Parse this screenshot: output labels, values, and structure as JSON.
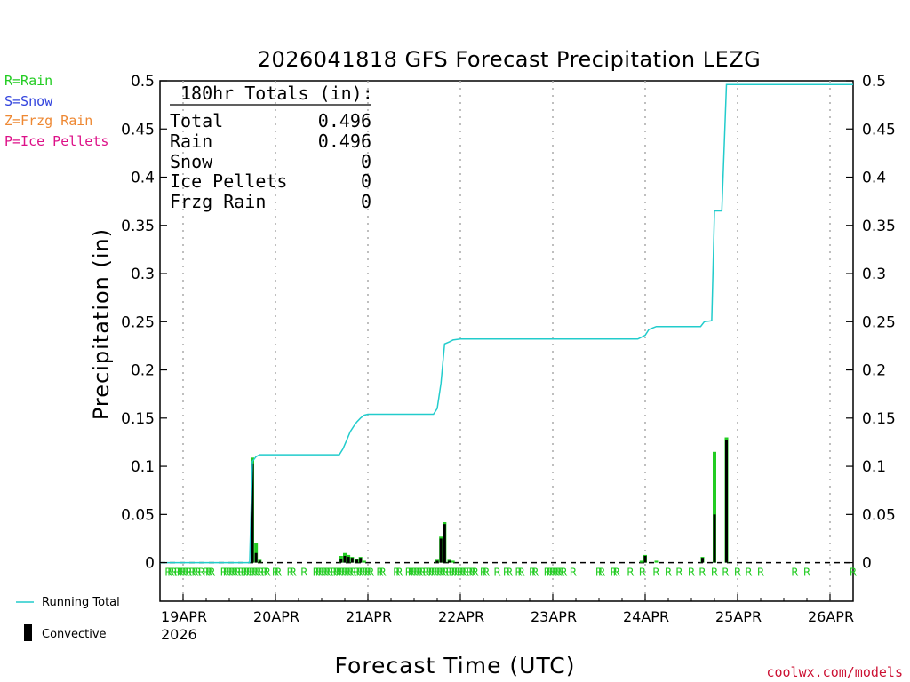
{
  "colors": {
    "rain": "#22cc22",
    "snow": "#3344dd",
    "frzg": "#ee8833",
    "ice": "#dd1188",
    "running": "#22cccc",
    "convective": "#000000",
    "grid": "#aaaaaa",
    "credit": "#cc1133"
  },
  "legend": {
    "rain": "R=Rain",
    "snow": "S=Snow",
    "frzg": "Z=Frzg Rain",
    "ice": "P=Ice Pellets",
    "running_total": "Running Total",
    "convective": "Convective"
  },
  "totals": {
    "heading": "180hr Totals (in):",
    "rows": [
      {
        "label": "Total",
        "value": "0.496"
      },
      {
        "label": "Rain",
        "value": "0.496"
      },
      {
        "label": "Snow",
        "value": "0"
      },
      {
        "label": "Ice Pellets",
        "value": "0"
      },
      {
        "label": "Frzg Rain",
        "value": "0"
      }
    ]
  },
  "credit": "coolwx.com/models",
  "chart_data": {
    "type": "bar",
    "title": "2026041818 GFS Forecast Precipitation LEZG",
    "xlabel": "Forecast Time (UTC)",
    "ylabel": "Precipitation (in)",
    "ylim": [
      -0.04,
      0.5
    ],
    "xlim": [
      -0.25,
      7.25
    ],
    "yticks": [
      "0",
      "0.05",
      "0.1",
      "0.15",
      "0.2",
      "0.25",
      "0.3",
      "0.35",
      "0.4",
      "0.45",
      "0.5"
    ],
    "ytick_values": [
      0,
      0.05,
      0.1,
      0.15,
      0.2,
      0.25,
      0.3,
      0.35,
      0.4,
      0.45,
      0.5
    ],
    "xticks": [
      {
        "day": 0,
        "label": "19APR",
        "sub": "2026"
      },
      {
        "day": 1,
        "label": "20APR"
      },
      {
        "day": 2,
        "label": "21APR"
      },
      {
        "day": 3,
        "label": "22APR"
      },
      {
        "day": 4,
        "label": "23APR"
      },
      {
        "day": 5,
        "label": "24APR"
      },
      {
        "day": 6,
        "label": "25APR"
      },
      {
        "day": 7,
        "label": "26APR"
      }
    ],
    "series": [
      {
        "name": "Rain",
        "note": "3-hourly precipitation; x in days from 00Z 19APR",
        "x": [
          0.75,
          0.79,
          0.83,
          1.71,
          1.75,
          1.79,
          1.83,
          1.88,
          1.92,
          1.96,
          2.75,
          2.79,
          2.83,
          2.88,
          2.92,
          4.96,
          5.0,
          5.12,
          5.62,
          5.75,
          5.88
        ],
        "values": [
          0.109,
          0.02,
          0.003,
          0.007,
          0.01,
          0.008,
          0.006,
          0.004,
          0.006,
          0.002,
          0.003,
          0.027,
          0.042,
          0.003,
          0.002,
          0.002,
          0.008,
          0.002,
          0.006,
          0.115,
          0.13
        ]
      },
      {
        "name": "Convective",
        "x": [
          0.75,
          0.79,
          0.83,
          1.71,
          1.75,
          1.79,
          1.83,
          1.88,
          1.92,
          2.75,
          2.79,
          2.83,
          2.88,
          5.0,
          5.62,
          5.75,
          5.88
        ],
        "values": [
          0.103,
          0.01,
          0.002,
          0.004,
          0.007,
          0.006,
          0.005,
          0.003,
          0.005,
          0.002,
          0.025,
          0.04,
          0.002,
          0.007,
          0.005,
          0.05,
          0.127
        ]
      },
      {
        "name": "Running Total",
        "x": [
          -0.25,
          0.72,
          0.75,
          0.79,
          0.83,
          1.69,
          1.73,
          1.77,
          1.81,
          1.85,
          1.88,
          1.92,
          1.96,
          2.0,
          2.71,
          2.75,
          2.79,
          2.83,
          2.88,
          2.92,
          3.0,
          4.92,
          4.96,
          5.0,
          5.04,
          5.12,
          5.6,
          5.64,
          5.72,
          5.75,
          5.83,
          5.88,
          5.92,
          7.25
        ],
        "values": [
          0,
          0,
          0.105,
          0.11,
          0.112,
          0.112,
          0.118,
          0.127,
          0.136,
          0.142,
          0.146,
          0.15,
          0.153,
          0.154,
          0.154,
          0.16,
          0.186,
          0.227,
          0.229,
          0.231,
          0.232,
          0.232,
          0.234,
          0.236,
          0.242,
          0.245,
          0.245,
          0.25,
          0.251,
          0.365,
          0.365,
          0.496,
          0.496,
          0.496
        ]
      }
    ],
    "ptype_markers": {
      "label": "R",
      "x": [
        -0.16,
        -0.13,
        -0.1,
        -0.06,
        -0.03,
        0.0,
        0.03,
        0.06,
        0.1,
        0.13,
        0.16,
        0.2,
        0.25,
        0.28,
        0.31,
        0.44,
        0.47,
        0.5,
        0.53,
        0.56,
        0.59,
        0.63,
        0.66,
        0.69,
        0.72,
        0.75,
        0.78,
        0.81,
        0.84,
        0.88,
        0.91,
        1.0,
        1.03,
        1.16,
        1.19,
        1.31,
        1.44,
        1.47,
        1.5,
        1.53,
        1.56,
        1.59,
        1.63,
        1.66,
        1.69,
        1.72,
        1.75,
        1.78,
        1.81,
        1.84,
        1.88,
        1.91,
        1.94,
        1.97,
        2.0,
        2.03,
        2.13,
        2.16,
        2.31,
        2.34,
        2.44,
        2.47,
        2.5,
        2.53,
        2.56,
        2.59,
        2.63,
        2.66,
        2.69,
        2.72,
        2.75,
        2.78,
        2.81,
        2.84,
        2.88,
        2.91,
        2.94,
        2.97,
        3.0,
        3.03,
        3.06,
        3.1,
        3.13,
        3.16,
        3.25,
        3.28,
        3.4,
        3.5,
        3.53,
        3.63,
        3.66,
        3.78,
        3.81,
        3.94,
        3.97,
        4.0,
        4.03,
        4.06,
        4.09,
        4.12,
        4.22,
        4.5,
        4.53,
        4.66,
        4.69,
        4.84,
        4.97,
        5.12,
        5.25,
        5.37,
        5.5,
        5.62,
        5.75,
        5.87,
        6.0,
        6.12,
        6.25,
        6.62,
        6.75,
        7.25
      ]
    }
  }
}
